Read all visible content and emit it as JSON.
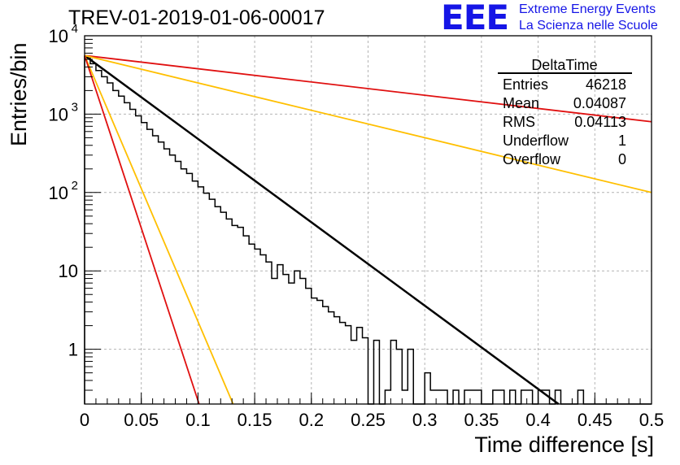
{
  "header": {
    "title": "TREV-01-2019-01-06-00017",
    "logo": "EEE",
    "logo_line1": "Extreme Energy Events",
    "logo_line2": "La Scienza nelle Scuole"
  },
  "colors": {
    "histogram": "#000000",
    "fit": "#000000",
    "bound_red": "#e01010",
    "bound_orange": "#ffbf00",
    "grid": "#b4b4b4",
    "logo": "#1515e6"
  },
  "chart_data": {
    "type": "line",
    "xlabel": "Time difference [s]",
    "ylabel": "Entries/bin",
    "xlim": [
      0,
      0.5
    ],
    "ylim": [
      0.2,
      10000
    ],
    "yscale": "log",
    "grid": true,
    "x_ticks": [
      "0",
      "0.05",
      "0.1",
      "0.15",
      "0.2",
      "0.25",
      "0.3",
      "0.35",
      "0.4",
      "0.45",
      "0.5"
    ],
    "y_ticks": [
      {
        "value": 1,
        "label": "1"
      },
      {
        "value": 10,
        "label": "10"
      },
      {
        "value": 100,
        "label": "10",
        "exp": "2"
      },
      {
        "value": 1000,
        "label": "10",
        "exp": "3"
      },
      {
        "value": 10000,
        "label": "10",
        "exp": "4"
      }
    ],
    "histogram": {
      "bin_width": 0.005,
      "x_start": 0,
      "values": [
        5400,
        4400,
        3600,
        3000,
        2500,
        2000,
        1700,
        1400,
        1150,
        950,
        780,
        640,
        530,
        440,
        360,
        300,
        250,
        200,
        175,
        140,
        118,
        98,
        82,
        66,
        56,
        46,
        38,
        36,
        28,
        22,
        19,
        16,
        13,
        8,
        12,
        9,
        7,
        10,
        8,
        6,
        4.5,
        4.2,
        3.5,
        3.0,
        2.6,
        2.2,
        2.0,
        1.3,
        1.9,
        1.4,
        0.15,
        1.3,
        0.2,
        0.3,
        1.3,
        1.0,
        0.3,
        1.0,
        0.2,
        0.2,
        0.5,
        0.3,
        0.3,
        0.3,
        0.2,
        0.3,
        0.2,
        0.3,
        0.3,
        0.3,
        0.2,
        0.2,
        0.3,
        0.3,
        0.2,
        0.3,
        0.2,
        0.3,
        0.3,
        0.2,
        0.3,
        0.3,
        0.2,
        0.3,
        0.2,
        0.2,
        0.2,
        0.3,
        0.2,
        0.2,
        0.2,
        0.2,
        0.2,
        0.2,
        0.2,
        0.2,
        0.2,
        0.2,
        0.2,
        0.2
      ]
    },
    "series": [
      {
        "color": "#000000",
        "start": [
          0,
          5600
        ],
        "end": [
          0.418,
          0.2
        ]
      },
      {
        "color": "#e01010",
        "start": [
          0,
          5600
        ],
        "end": [
          0.5,
          800
        ]
      },
      {
        "color": "#ffbf00",
        "start": [
          0,
          5600
        ],
        "end": [
          0.5,
          100
        ]
      },
      {
        "color": "#ffbf00",
        "start": [
          0,
          5600
        ],
        "end": [
          0.131,
          0.2
        ]
      },
      {
        "color": "#e01010",
        "start": [
          0,
          5600
        ],
        "end": [
          0.101,
          0.2
        ]
      }
    ],
    "stats_box": {
      "title": "DeltaTime",
      "rows": [
        {
          "label": "Entries",
          "value": "46218"
        },
        {
          "label": "Mean",
          "value": "0.04087"
        },
        {
          "label": "RMS",
          "value": "0.04113"
        },
        {
          "label": "Underflow",
          "value": "1"
        },
        {
          "label": "Overflow",
          "value": "0"
        }
      ]
    }
  }
}
